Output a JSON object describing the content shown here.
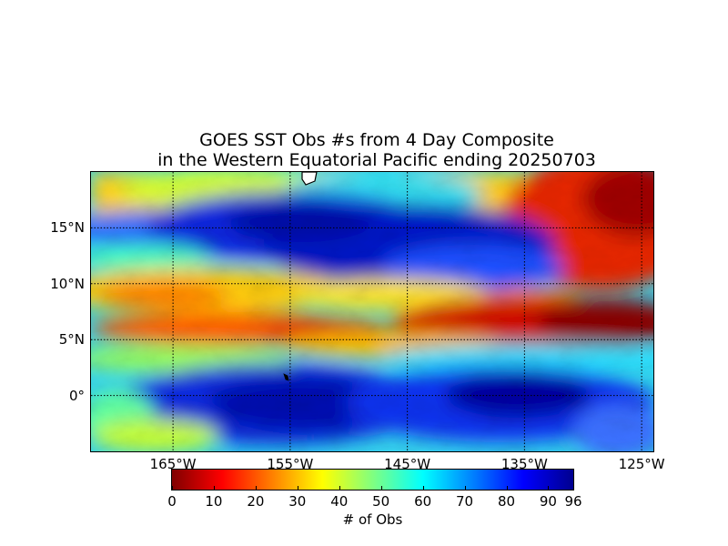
{
  "title": {
    "line1": "GOES SST Obs #s from 4 Day Composite",
    "line2": "in the Western Equatorial Pacific ending 20250703"
  },
  "map": {
    "lon_range": [
      -172,
      -124
    ],
    "lat_range": [
      -5,
      20
    ],
    "lat_labels": [
      "15°N",
      "10°N",
      "5°N",
      "0°"
    ],
    "lat_values": [
      15,
      10,
      5,
      0
    ],
    "lon_labels": [
      "165°W",
      "155°W",
      "145°W",
      "135°W",
      "125°W"
    ],
    "lon_values": [
      -165,
      -155,
      -145,
      -135,
      -125
    ],
    "gridlines": true
  },
  "colorbar": {
    "label": "# of Obs",
    "min": 0,
    "max": 96,
    "colormap": "jet_reversed",
    "ticks": [
      "0",
      "10",
      "20",
      "30",
      "40",
      "50",
      "60",
      "70",
      "80",
      "90",
      "96"
    ],
    "tick_values": [
      0,
      10,
      20,
      30,
      40,
      50,
      60,
      70,
      80,
      90,
      96
    ]
  },
  "colors": {
    "high": "#00008f",
    "low": "#800000",
    "land": "#ffffff",
    "coast": "#000000"
  }
}
